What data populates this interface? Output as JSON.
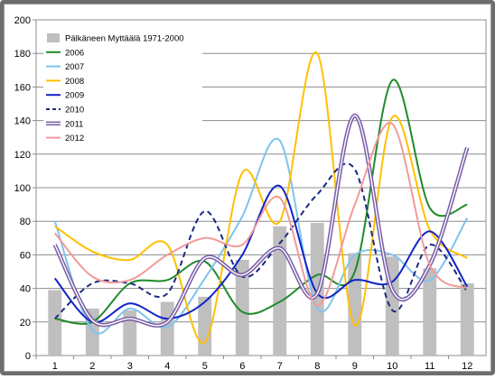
{
  "chart_data": {
    "type": "line",
    "categories": [
      "1",
      "2",
      "3",
      "4",
      "5",
      "6",
      "7",
      "8",
      "9",
      "10",
      "11",
      "12"
    ],
    "ylim": [
      0,
      200
    ],
    "yticks": [
      "0",
      "20",
      "40",
      "60",
      "80",
      "100",
      "120",
      "140",
      "160",
      "180",
      "200"
    ],
    "grid": true,
    "legend": "top-left",
    "series": [
      {
        "name": "Pälkäneen Myttäälä 1971-2000",
        "kind": "bar",
        "color": "#bfbfbf",
        "values": [
          39,
          28,
          27,
          32,
          35,
          57,
          77,
          79,
          61,
          59,
          52,
          43
        ]
      },
      {
        "name": "2006",
        "kind": "line",
        "color": "#1f8a2b",
        "dash": false,
        "values": [
          22,
          20,
          43,
          45,
          56,
          26,
          32,
          48,
          50,
          164,
          88,
          90
        ]
      },
      {
        "name": "2007",
        "kind": "line",
        "color": "#7fc4ee",
        "dash": false,
        "values": [
          80,
          15,
          28,
          17,
          46,
          83,
          128,
          28,
          60,
          60,
          45,
          82
        ]
      },
      {
        "name": "2008",
        "kind": "line",
        "color": "#ffc000",
        "dash": false,
        "values": [
          77,
          62,
          57,
          66,
          8,
          109,
          80,
          180,
          18,
          142,
          75,
          58
        ]
      },
      {
        "name": "2009",
        "kind": "line",
        "color": "#1024c8",
        "dash": false,
        "values": [
          46,
          20,
          31,
          22,
          32,
          60,
          101,
          37,
          45,
          44,
          74,
          41
        ]
      },
      {
        "name": "2010",
        "kind": "line",
        "color": "#1c2a80",
        "dash": true,
        "values": [
          22,
          43,
          43,
          37,
          86,
          47,
          67,
          96,
          111,
          27,
          66,
          38
        ]
      },
      {
        "name": "2011",
        "kind": "line",
        "color": "#7a60a8",
        "dash": false,
        "double": true,
        "values": [
          66,
          21,
          22,
          20,
          58,
          48,
          64,
          37,
          143,
          39,
          54,
          124
        ]
      },
      {
        "name": "2012",
        "kind": "line",
        "color": "#f29a9a",
        "dash": false,
        "values": [
          73,
          47,
          45,
          60,
          70,
          66,
          94,
          30,
          90,
          138,
          54,
          40
        ]
      }
    ]
  }
}
